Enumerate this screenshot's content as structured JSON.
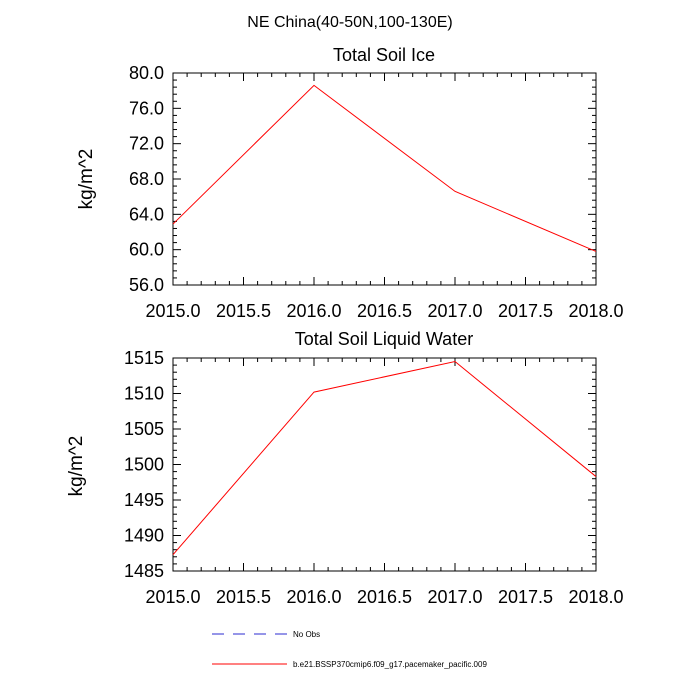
{
  "suptitle": "NE China(40-50N,100-130E)",
  "legend": [
    {
      "label": "No Obs",
      "color": "#2b2bd0",
      "dashed": true
    },
    {
      "label": "b.e21.BSSP370cmip6.f09_g17.pacemaker_pacific.009",
      "color": "#ff0000",
      "dashed": false
    }
  ],
  "chart_data": [
    {
      "type": "line",
      "title": "Total Soil Ice",
      "ylabel": "kg/m^2",
      "xlabel": "",
      "xlim": [
        2015.0,
        2018.0
      ],
      "ylim": [
        56.0,
        80.0
      ],
      "xticks": [
        "2015.0",
        "2015.5",
        "2016.0",
        "2016.5",
        "2017.0",
        "2017.5",
        "2018.0"
      ],
      "yticks": [
        "56.0",
        "60.0",
        "64.0",
        "68.0",
        "72.0",
        "76.0",
        "80.0"
      ],
      "series": [
        {
          "name": "b.e21.BSSP370cmip6.f09_g17.pacemaker_pacific.009",
          "color": "#ff0000",
          "x": [
            2015.0,
            2016.0,
            2017.0,
            2018.0
          ],
          "values": [
            62.9,
            78.6,
            66.6,
            59.8
          ]
        }
      ]
    },
    {
      "type": "line",
      "title": "Total Soil Liquid Water",
      "ylabel": "kg/m^2",
      "xlabel": "",
      "xlim": [
        2015.0,
        2018.0
      ],
      "ylim": [
        1485,
        1515
      ],
      "xticks": [
        "2015.0",
        "2015.5",
        "2016.0",
        "2016.5",
        "2017.0",
        "2017.5",
        "2018.0"
      ],
      "yticks": [
        "1485",
        "1490",
        "1495",
        "1500",
        "1505",
        "1510",
        "1515"
      ],
      "series": [
        {
          "name": "b.e21.BSSP370cmip6.f09_g17.pacemaker_pacific.009",
          "color": "#ff0000",
          "x": [
            2015.0,
            2016.0,
            2017.0,
            2018.0
          ],
          "values": [
            1487.3,
            1510.2,
            1514.5,
            1498.3
          ]
        }
      ]
    }
  ]
}
